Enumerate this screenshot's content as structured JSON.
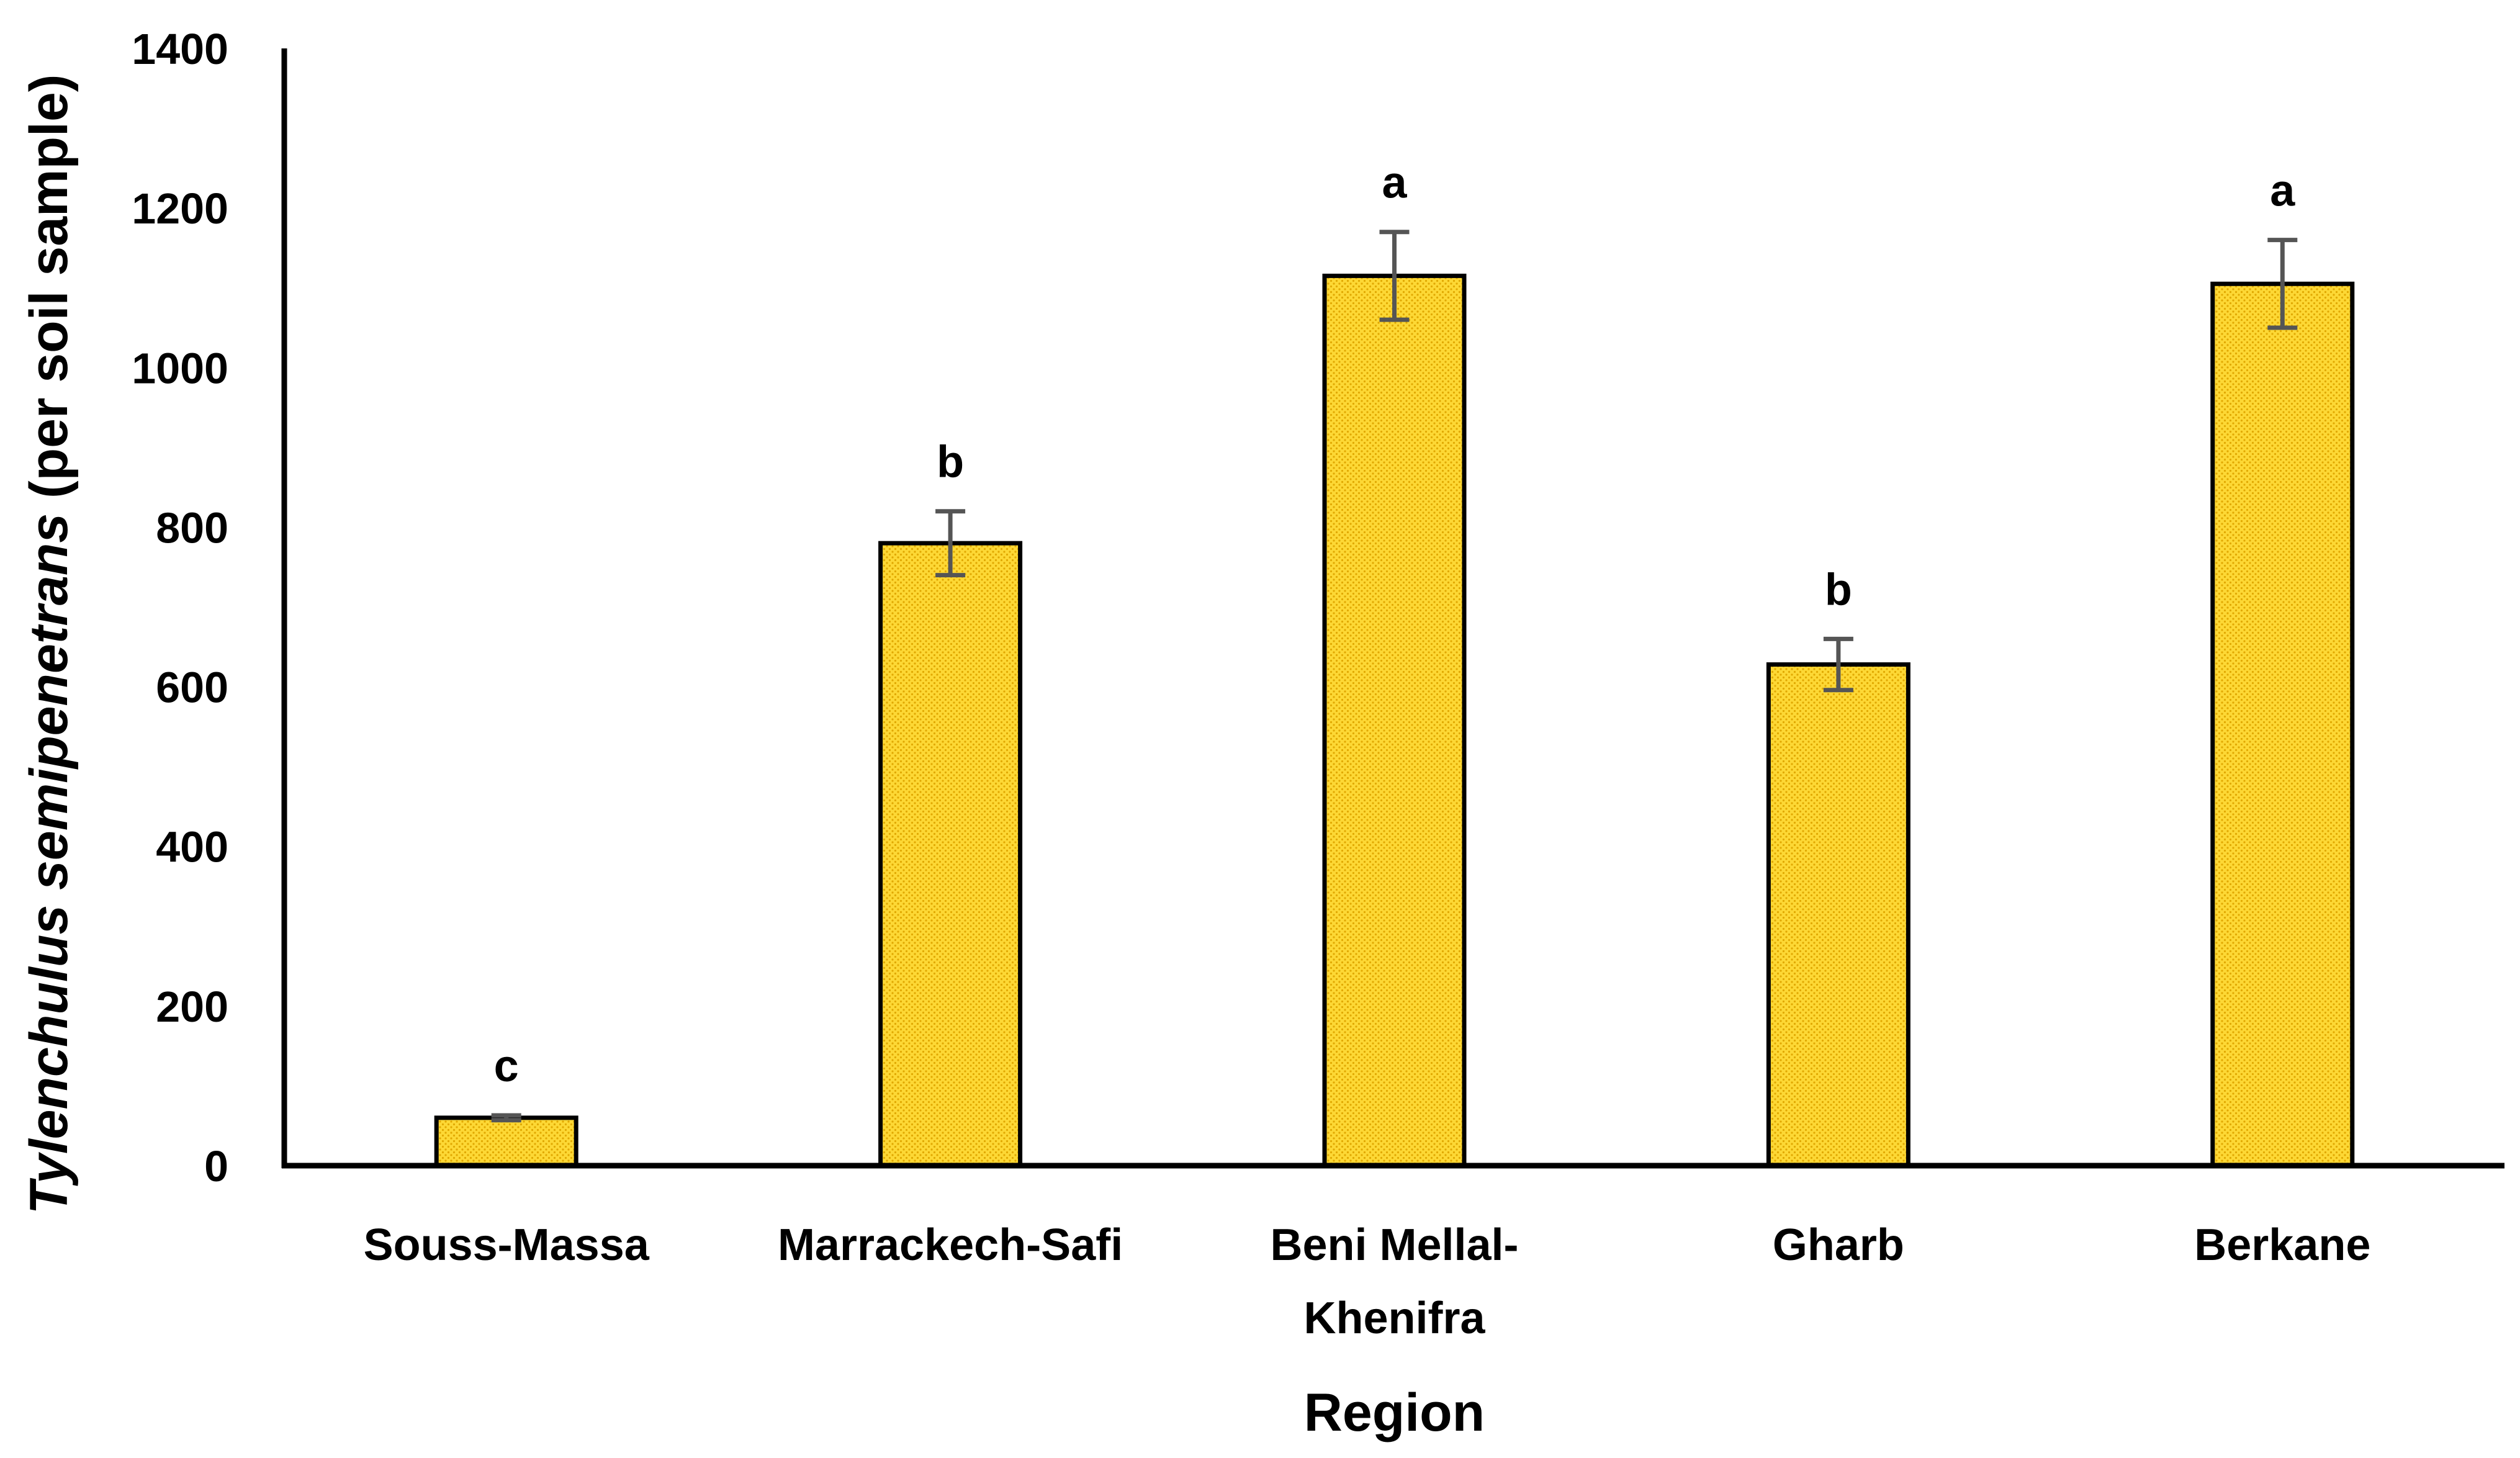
{
  "chart_data": {
    "type": "bar",
    "xlabel": "Region",
    "ylabel_italic": "Tylenchulus semipenetrans",
    "ylabel_rest": " (per soil sample)",
    "ylim": [
      0,
      1400
    ],
    "yticks": [
      0,
      200,
      400,
      600,
      800,
      1000,
      1200,
      1400
    ],
    "grid": false,
    "categories": [
      [
        "Souss-Massa"
      ],
      [
        "Marrackech-Safi"
      ],
      [
        "Beni Mellal-",
        "Khenifra"
      ],
      [
        "Gharb"
      ],
      [
        "Berkane"
      ]
    ],
    "values": [
      60,
      780,
      1115,
      628,
      1105
    ],
    "errors": [
      3,
      40,
      55,
      32,
      55
    ],
    "significance": [
      "c",
      "b",
      "a",
      "b",
      "a"
    ],
    "colors": {
      "bar_fill": "#FDD835",
      "bar_dots": "#E0A800",
      "error_bar": "#555555",
      "axis": "#000000"
    }
  }
}
